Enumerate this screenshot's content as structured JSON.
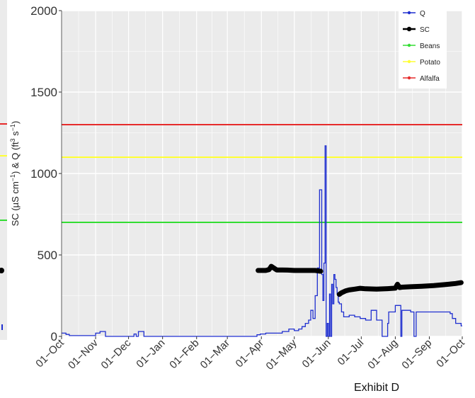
{
  "exhibit_label": "Exhibit D",
  "chart_data": {
    "type": "line",
    "title": "",
    "xlabel": "",
    "ylabel_parts": {
      "lead": "SC (µS cm",
      "exp1": "−1",
      "mid": ") & Q (ft",
      "exp2": "3",
      "mid2": " s",
      "exp3": "−1",
      "tail": ")"
    },
    "ylim": [
      0,
      2000
    ],
    "yticks": [
      "0",
      "500",
      "1000",
      "1500",
      "2000"
    ],
    "xticks": [
      "01−Oct",
      "01−Nov",
      "01−Dec",
      "01−Jan",
      "01−Feb",
      "01−Mar",
      "01−Apr",
      "01−May",
      "01−Jun",
      "01−Jul",
      "01−Aug",
      "01−Sep",
      "01−Oct"
    ],
    "x_day_ticks": [
      0,
      31,
      61,
      92,
      123,
      151,
      182,
      212,
      243,
      273,
      304,
      335,
      365
    ],
    "xlim_days": [
      0,
      365
    ],
    "grid": true,
    "legend_position": "top-right",
    "colors": {
      "panel": "#ebebeb",
      "grid": "#ffffff",
      "q": "#1f2fd0",
      "sc": "#000000",
      "beans": "#33dd33",
      "potato": "#ffff33",
      "alfalfa": "#e62b2b"
    },
    "series": [
      {
        "name": "Q",
        "style": "step",
        "x": [
          "01-Oct",
          "05-Oct",
          "08-Oct",
          "01-Nov",
          "01-Nov",
          "05-Nov",
          "10-Nov",
          "01-Dec",
          "06-Dec",
          "08-Dec",
          "10-Dec",
          "15-Dec",
          "01-Jan",
          "01-Feb",
          "01-Mar",
          "28-Mar",
          "31-Mar",
          "05-Apr",
          "20-Apr",
          "26-Apr",
          "01-May",
          "05-May",
          "08-May",
          "11-May",
          "14-May",
          "16-May",
          "18-May",
          "20-May",
          "22-May",
          "24-May",
          "26-May",
          "27-May",
          "28-May",
          "29-May",
          "30-May",
          "31-May",
          "01-Jun",
          "02-Jun",
          "03-Jun",
          "04-Jun",
          "05-Jun",
          "06-Jun",
          "07-Jun",
          "08-Jun",
          "09-Jun",
          "10-Jun",
          "11-Jun",
          "13-Jun",
          "15-Jun",
          "20-Jun",
          "25-Jun",
          "30-Jun",
          "05-Jul",
          "10-Jul",
          "15-Jul",
          "18-Jul",
          "20-Jul",
          "25-Jul",
          "26-Jul",
          "01-Aug",
          "06-Aug",
          "07-Aug",
          "15-Aug",
          "18-Aug",
          "20-Aug",
          "01-Sep",
          "20-Sep",
          "22-Sep",
          "25-Sep",
          "30-Sep"
        ],
        "y": [
          20,
          12,
          5,
          5,
          20,
          30,
          0,
          0,
          15,
          0,
          30,
          0,
          0,
          0,
          0,
          10,
          15,
          20,
          30,
          45,
          35,
          45,
          60,
          80,
          100,
          160,
          110,
          250,
          420,
          900,
          380,
          220,
          450,
          1170,
          0,
          80,
          0,
          260,
          0,
          320,
          200,
          380,
          350,
          300,
          260,
          210,
          200,
          150,
          120,
          130,
          120,
          110,
          100,
          160,
          100,
          100,
          0,
          80,
          150,
          190,
          0,
          160,
          150,
          0,
          150,
          150,
          140,
          110,
          80,
          65
        ]
      },
      {
        "name": "SC",
        "style": "thick",
        "x": [
          "29-Mar",
          "02-Apr",
          "05-Apr",
          "08-Apr",
          "10-Apr",
          "15-Apr",
          "20-Apr",
          "25-Apr",
          "01-May",
          "05-May",
          "10-May",
          "15-May",
          "20-May",
          "25-May",
          "11-Jun",
          "13-Jun",
          "17-Jun",
          "20-Jun",
          "25-Jun",
          "30-Jun",
          "05-Jul",
          "15-Jul",
          "25-Jul",
          "01-Aug",
          "03-Aug",
          "05-Aug",
          "07-Aug",
          "15-Aug",
          "25-Aug",
          "05-Sep",
          "15-Sep",
          "25-Sep",
          "30-Sep"
        ],
        "y": [
          405,
          405,
          405,
          410,
          430,
          408,
          408,
          407,
          405,
          405,
          405,
          405,
          405,
          400,
          258,
          268,
          280,
          285,
          290,
          295,
          292,
          290,
          293,
          296,
          320,
          300,
          302,
          305,
          308,
          312,
          318,
          325,
          330
        ]
      },
      {
        "name": "Beans",
        "style": "hline",
        "value": 700
      },
      {
        "name": "Potato",
        "style": "hline",
        "value": 1100
      },
      {
        "name": "Alfalfa",
        "style": "hline",
        "value": 1300
      }
    ]
  }
}
